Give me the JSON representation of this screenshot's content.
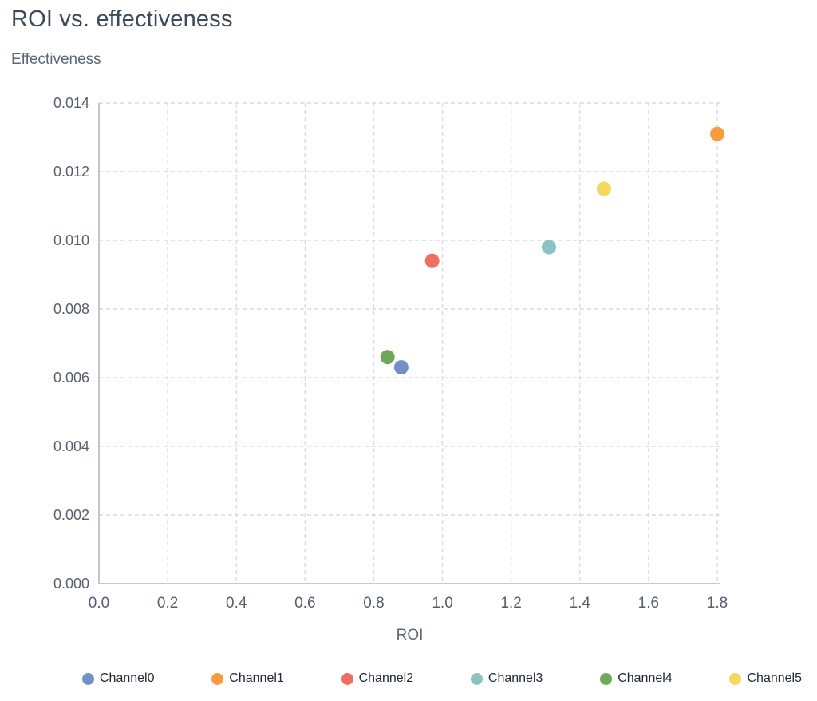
{
  "header": {
    "title": "ROI vs. effectiveness",
    "y_axis_title": "Effectiveness"
  },
  "chart_data": {
    "type": "scatter",
    "title": "ROI vs. effectiveness",
    "xlabel": "ROI",
    "ylabel": "Effectiveness",
    "xlim": [
      0.0,
      1.8
    ],
    "ylim": [
      0.0,
      0.014
    ],
    "grid": "dashed",
    "legend_position": "bottom",
    "x_ticks": [
      0.0,
      0.2,
      0.4,
      0.6,
      0.8,
      1.0,
      1.2,
      1.4,
      1.6,
      1.8
    ],
    "x_tick_labels": [
      "0.0",
      "0.2",
      "0.4",
      "0.6",
      "0.8",
      "1.0",
      "1.2",
      "1.4",
      "1.6",
      "1.8"
    ],
    "y_ticks": [
      0.0,
      0.002,
      0.004,
      0.006,
      0.008,
      0.01,
      0.012,
      0.014
    ],
    "y_tick_labels": [
      "0.000",
      "0.002",
      "0.004",
      "0.006",
      "0.008",
      "0.010",
      "0.012",
      "0.014"
    ],
    "series": [
      {
        "name": "Channel0",
        "color": "#7191c6",
        "points": [
          {
            "x": 0.88,
            "y": 0.0063
          }
        ]
      },
      {
        "name": "Channel1",
        "color": "#f89c3d",
        "points": [
          {
            "x": 1.8,
            "y": 0.0131
          }
        ]
      },
      {
        "name": "Channel2",
        "color": "#ed6f63",
        "points": [
          {
            "x": 0.97,
            "y": 0.0094
          }
        ]
      },
      {
        "name": "Channel3",
        "color": "#8ac3c1",
        "points": [
          {
            "x": 1.31,
            "y": 0.0098
          }
        ]
      },
      {
        "name": "Channel4",
        "color": "#6fa85b",
        "points": [
          {
            "x": 0.84,
            "y": 0.0066
          }
        ]
      },
      {
        "name": "Channel5",
        "color": "#f5d95f",
        "points": [
          {
            "x": 1.47,
            "y": 0.0115
          }
        ]
      }
    ],
    "style": {
      "grid_color": "#d8dbdf",
      "axis_color": "#b3b9c0",
      "tick_label_color": "#56606c",
      "axis_label_color": "#5d6874",
      "point_radius": 9
    }
  }
}
